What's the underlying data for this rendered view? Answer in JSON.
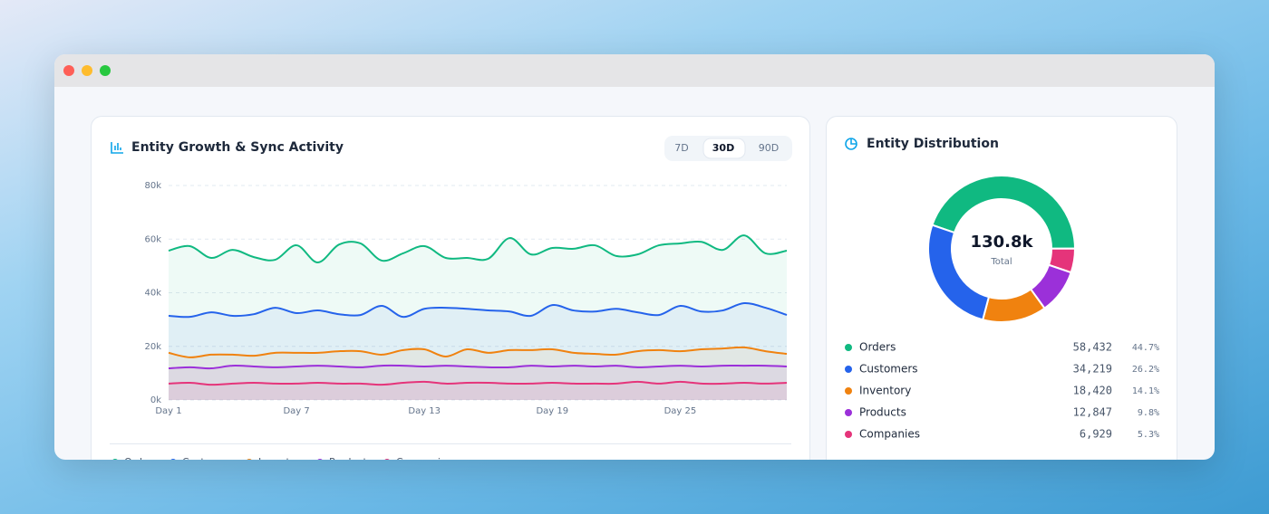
{
  "chart_data": [
    {
      "type": "area",
      "title": "Entity Growth & Sync Activity",
      "range_options": [
        "7D",
        "30D",
        "90D"
      ],
      "selected": 1,
      "categories": [
        "Day 1",
        null,
        null,
        null,
        null,
        null,
        "Day 7",
        null,
        null,
        null,
        null,
        null,
        "Day 13",
        null,
        null,
        null,
        null,
        null,
        "Day 19",
        null,
        null,
        null,
        null,
        null,
        "Day 25",
        null,
        null,
        null,
        null,
        null
      ],
      "series": [
        {
          "name": "Orders",
          "color": "#10b981",
          "values": [
            55700,
            57400,
            53000,
            56000,
            53300,
            52300,
            57700,
            51300,
            58000,
            58400,
            52000,
            54700,
            57400,
            53000,
            53000,
            52700,
            60400,
            54300,
            56700,
            56400,
            57700,
            53700,
            54300,
            57700,
            58400,
            59000,
            56000,
            61400,
            54700,
            55700
          ]
        },
        {
          "name": "Customers",
          "color": "#2563eb",
          "values": [
            31400,
            31000,
            32700,
            31400,
            32000,
            34400,
            32400,
            33400,
            32000,
            31700,
            35100,
            31000,
            34000,
            34400,
            34000,
            33400,
            33000,
            31400,
            35400,
            33400,
            33000,
            34000,
            32700,
            31700,
            35100,
            33000,
            33400,
            36100,
            34400,
            31700
          ]
        },
        {
          "name": "Inventory",
          "color": "#f0820f",
          "values": [
            17600,
            15900,
            16900,
            16900,
            16500,
            17600,
            17600,
            17600,
            18200,
            18200,
            16900,
            18600,
            18900,
            16200,
            18900,
            17600,
            18600,
            18600,
            18900,
            17600,
            17200,
            16900,
            18200,
            18600,
            18200,
            18900,
            19200,
            19600,
            18200,
            17200
          ]
        },
        {
          "name": "Products",
          "color": "#9b30d9",
          "values": [
            11800,
            12200,
            11800,
            12800,
            12500,
            12200,
            12500,
            12800,
            12500,
            12200,
            12800,
            12800,
            12500,
            12800,
            12500,
            12200,
            12200,
            12800,
            12500,
            12800,
            12500,
            12800,
            12200,
            12500,
            12800,
            12500,
            12800,
            12800,
            12800,
            12500
          ]
        },
        {
          "name": "Companies",
          "color": "#e5347a",
          "values": [
            6100,
            6400,
            5700,
            6100,
            6400,
            6100,
            6100,
            6400,
            6100,
            6100,
            5700,
            6400,
            6800,
            6100,
            6400,
            6400,
            6100,
            6100,
            6400,
            6100,
            6100,
            6100,
            6800,
            6100,
            6800,
            6100,
            6100,
            6400,
            6100,
            6400
          ]
        }
      ],
      "ylim": [
        0,
        80000
      ],
      "yticks": [
        {
          "value": 0,
          "label": "0k"
        },
        {
          "value": 20000,
          "label": "20k"
        },
        {
          "value": 40000,
          "label": "40k"
        },
        {
          "value": 60000,
          "label": "60k"
        },
        {
          "value": 80000,
          "label": "80k"
        }
      ],
      "grid": true
    },
    {
      "type": "donut",
      "title": "Entity Distribution",
      "center_value": "130.8k",
      "center_label": "Total",
      "categories": [
        "Orders",
        "Customers",
        "Inventory",
        "Products",
        "Companies"
      ],
      "values": [
        58432,
        34219,
        18420,
        12847,
        6929
      ],
      "value_labels": [
        "58,432",
        "34,219",
        "18,420",
        "12,847",
        "6,929"
      ],
      "percents": [
        44.7,
        26.2,
        14.1,
        9.8,
        5.3
      ],
      "percent_labels": [
        "44.7%",
        "26.2%",
        "14.1%",
        "9.8%",
        "5.3%"
      ],
      "colors": [
        "#10b981",
        "#2563eb",
        "#f0820f",
        "#9b30d9",
        "#e5347a"
      ]
    }
  ]
}
